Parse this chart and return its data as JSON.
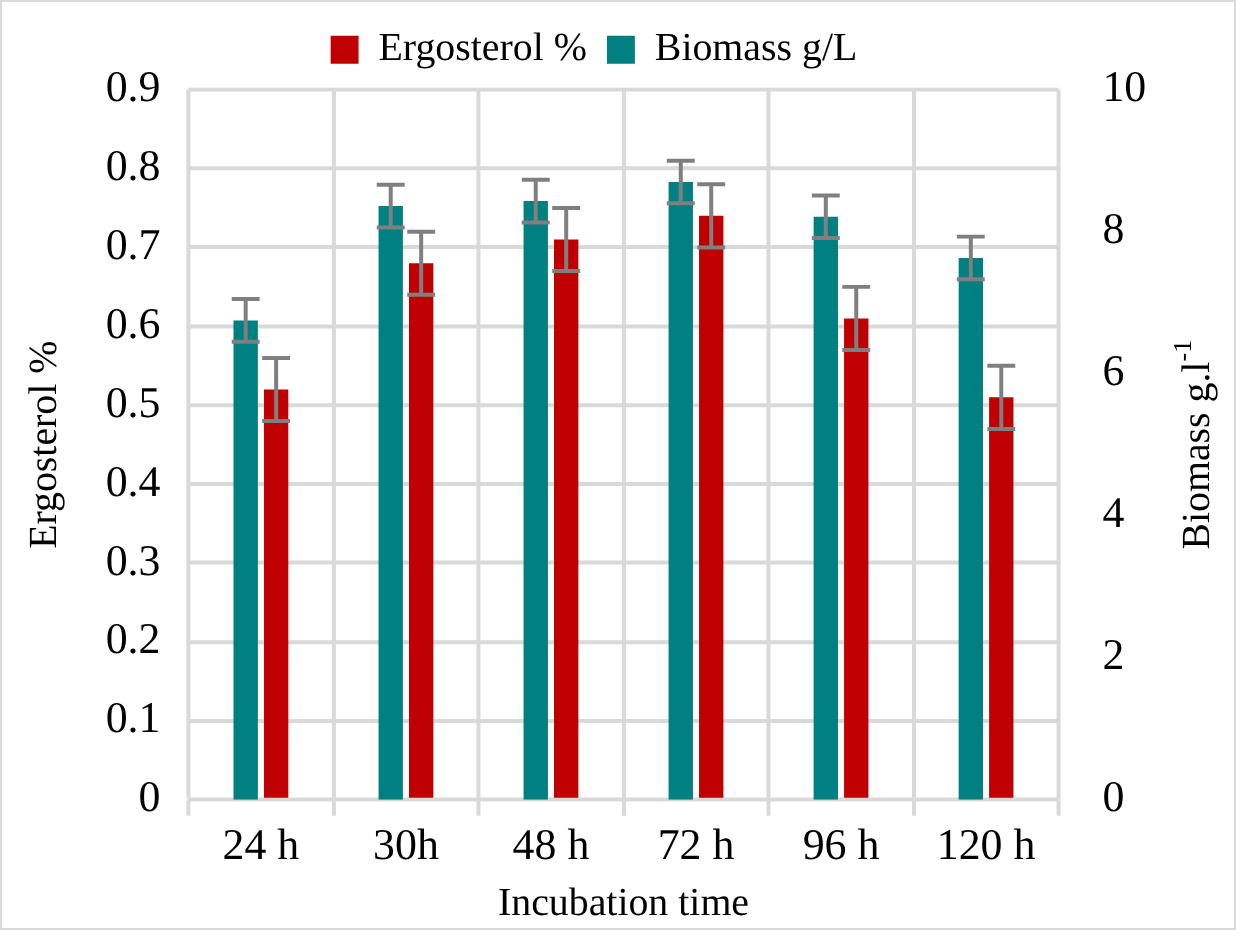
{
  "chart_data": {
    "type": "bar",
    "xlabel": "Incubation time",
    "ylabel": "Ergosterol %",
    "y2label": "Biomass g.l$^{-1}$",
    "categories": [
      "24 h",
      "30h",
      "48 h",
      "72 h",
      "96 h",
      "120 h"
    ],
    "series": [
      {
        "name": "Ergosterol %",
        "color": "#c00000",
        "values": [
          0.52,
          0.68,
          0.71,
          0.74,
          0.61,
          0.51
        ],
        "errors": [
          0.04,
          0.04,
          0.04,
          0.04,
          0.04,
          0.04
        ]
      },
      {
        "name": "Biomass g/L",
        "color": "#008080",
        "axis": "y2",
        "values": [
          6.75,
          8.36,
          8.43,
          8.7,
          8.21,
          7.63
        ],
        "errors": [
          0.3,
          0.3,
          0.3,
          0.3,
          0.3,
          0.3
        ]
      }
    ],
    "ylim": [
      0,
      0.9
    ],
    "yticks": [
      0,
      0.1,
      0.2,
      0.3,
      0.4,
      0.5,
      0.6,
      0.7,
      0.8,
      0.9
    ],
    "y2lim": [
      0,
      10
    ],
    "y2ticks": [
      0,
      2,
      4,
      6,
      8,
      10
    ],
    "grid": true,
    "legend": "top"
  }
}
